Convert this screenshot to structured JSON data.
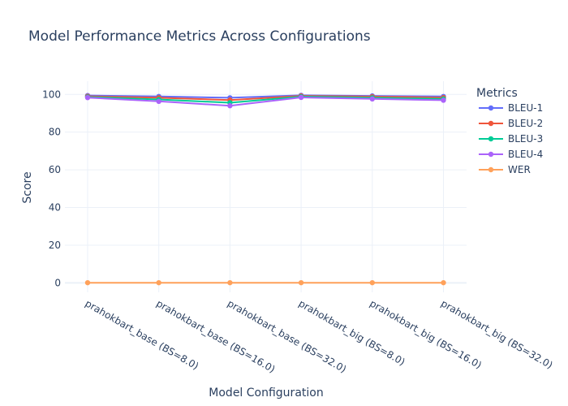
{
  "chart_data": {
    "type": "line",
    "title": "Model Performance Metrics Across Configurations",
    "xlabel": "Model Configuration",
    "ylabel": "Score",
    "categories": [
      "prahokbart_base (BS=8.0)",
      "prahokbart_base (BS=16.0)",
      "prahokbart_base (BS=32.0)",
      "prahokbart_big (BS=8.0)",
      "prahokbart_big (BS=16.0)",
      "prahokbart_big (BS=32.0)"
    ],
    "ylim": [
      -5,
      107
    ],
    "yticks": [
      0,
      20,
      40,
      60,
      80,
      100
    ],
    "grid": true,
    "legend": {
      "title": "Metrics",
      "placement": "right"
    },
    "series": [
      {
        "name": "BLEU-1",
        "color": "#636efa",
        "values": [
          99.4,
          98.9,
          98.2,
          99.5,
          99.2,
          98.9
        ]
      },
      {
        "name": "BLEU-2",
        "color": "#ef553b",
        "values": [
          99.0,
          98.2,
          97.0,
          99.2,
          98.8,
          98.3
        ]
      },
      {
        "name": "BLEU-3",
        "color": "#00cc96",
        "values": [
          98.6,
          97.3,
          95.6,
          98.8,
          98.2,
          97.6
        ]
      },
      {
        "name": "BLEU-4",
        "color": "#ab63fa",
        "values": [
          98.3,
          96.3,
          94.0,
          98.4,
          97.6,
          96.9
        ]
      },
      {
        "name": "WER",
        "color": "#ffa15a",
        "values": [
          0.1,
          0.1,
          0.1,
          0.1,
          0.1,
          0.1
        ]
      }
    ]
  }
}
